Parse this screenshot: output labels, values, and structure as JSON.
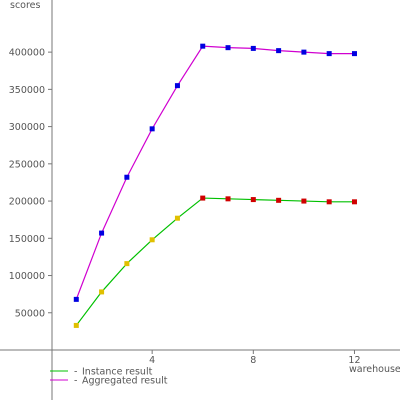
{
  "chart_data": {
    "type": "line",
    "y_label": "scores",
    "x_label": "warehouses",
    "x": [
      1,
      2,
      3,
      4,
      5,
      6,
      7,
      8,
      9,
      10,
      11,
      12
    ],
    "series": [
      {
        "name": "Instance result",
        "color": "#00c000",
        "marker_colors": [
          "#e0c000",
          "#e0c000",
          "#e0c000",
          "#e0c000",
          "#e0c000",
          "#d00000",
          "#d00000",
          "#d00000",
          "#d00000",
          "#d00000",
          "#d00000",
          "#d00000"
        ],
        "values": [
          33000,
          78000,
          116000,
          148000,
          177000,
          204000,
          203000,
          202000,
          201000,
          200000,
          199000,
          199000
        ]
      },
      {
        "name": "Aggregated result",
        "color": "#d000d0",
        "marker_colors": [
          "#0000e0",
          "#0000e0",
          "#0000e0",
          "#0000e0",
          "#0000e0",
          "#0000e0",
          "#0000e0",
          "#0000e0",
          "#0000e0",
          "#0000e0",
          "#0000e0",
          "#0000e0"
        ],
        "values": [
          68000,
          157000,
          232000,
          297000,
          355000,
          408000,
          406000,
          405000,
          402000,
          400000,
          398000,
          398000
        ]
      }
    ],
    "xlim": [
      0,
      13.8
    ],
    "xticks": [
      4,
      8,
      12
    ],
    "ylim": [
      0,
      470000
    ],
    "yticks": [
      50000,
      100000,
      150000,
      200000,
      250000,
      300000,
      350000,
      400000
    ]
  }
}
